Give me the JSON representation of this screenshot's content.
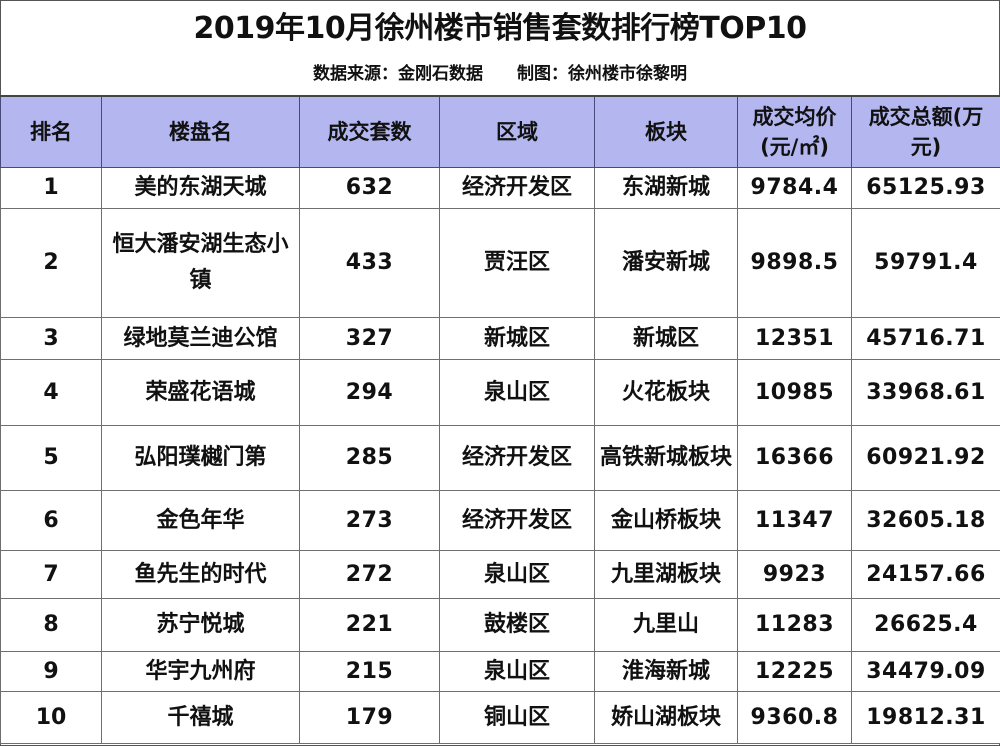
{
  "title": "2019年10月徐州楼市销售套数排行榜TOP10",
  "subtitle": {
    "source": "数据来源：金刚石数据",
    "author": "制图：徐州楼市徐黎明"
  },
  "colors": {
    "header_bg": "#b4b6f0",
    "border": "#6f6f6f",
    "text": "#111111"
  },
  "table": {
    "headers": [
      "排名",
      "楼盘名",
      "成交套数",
      "区域",
      "板块",
      "成交均价(元/㎡)",
      "成交总额(万元)"
    ],
    "rows": [
      {
        "rank": "1",
        "name": "美的东湖天城",
        "units": "632",
        "district": "经济开发区",
        "zone": "东湖新城",
        "avg_price": "9784.4",
        "total": "65125.93"
      },
      {
        "rank": "2",
        "name": "恒大潘安湖生态小镇",
        "units": "433",
        "district": "贾汪区",
        "zone": "潘安新城",
        "avg_price": "9898.5",
        "total": "59791.4"
      },
      {
        "rank": "3",
        "name": "绿地莫兰迪公馆",
        "units": "327",
        "district": "新城区",
        "zone": "新城区",
        "avg_price": "12351",
        "total": "45716.71"
      },
      {
        "rank": "4",
        "name": "荣盛花语城",
        "units": "294",
        "district": "泉山区",
        "zone": "火花板块",
        "avg_price": "10985",
        "total": "33968.61"
      },
      {
        "rank": "5",
        "name": "弘阳璞樾门第",
        "units": "285",
        "district": "经济开发区",
        "zone": "高铁新城板块",
        "avg_price": "16366",
        "total": "60921.92"
      },
      {
        "rank": "6",
        "name": "金色年华",
        "units": "273",
        "district": "经济开发区",
        "zone": "金山桥板块",
        "avg_price": "11347",
        "total": "32605.18"
      },
      {
        "rank": "7",
        "name": "鱼先生的时代",
        "units": "272",
        "district": "泉山区",
        "zone": "九里湖板块",
        "avg_price": "9923",
        "total": "24157.66"
      },
      {
        "rank": "8",
        "name": "苏宁悦城",
        "units": "221",
        "district": "鼓楼区",
        "zone": "九里山",
        "avg_price": "11283",
        "total": "26625.4"
      },
      {
        "rank": "9",
        "name": "华宇九州府",
        "units": "215",
        "district": "泉山区",
        "zone": "淮海新城",
        "avg_price": "12225",
        "total": "34479.09"
      },
      {
        "rank": "10",
        "name": "千禧城",
        "units": "179",
        "district": "铜山区",
        "zone": "娇山湖板块",
        "avg_price": "9360.8",
        "total": "19812.31"
      }
    ]
  }
}
